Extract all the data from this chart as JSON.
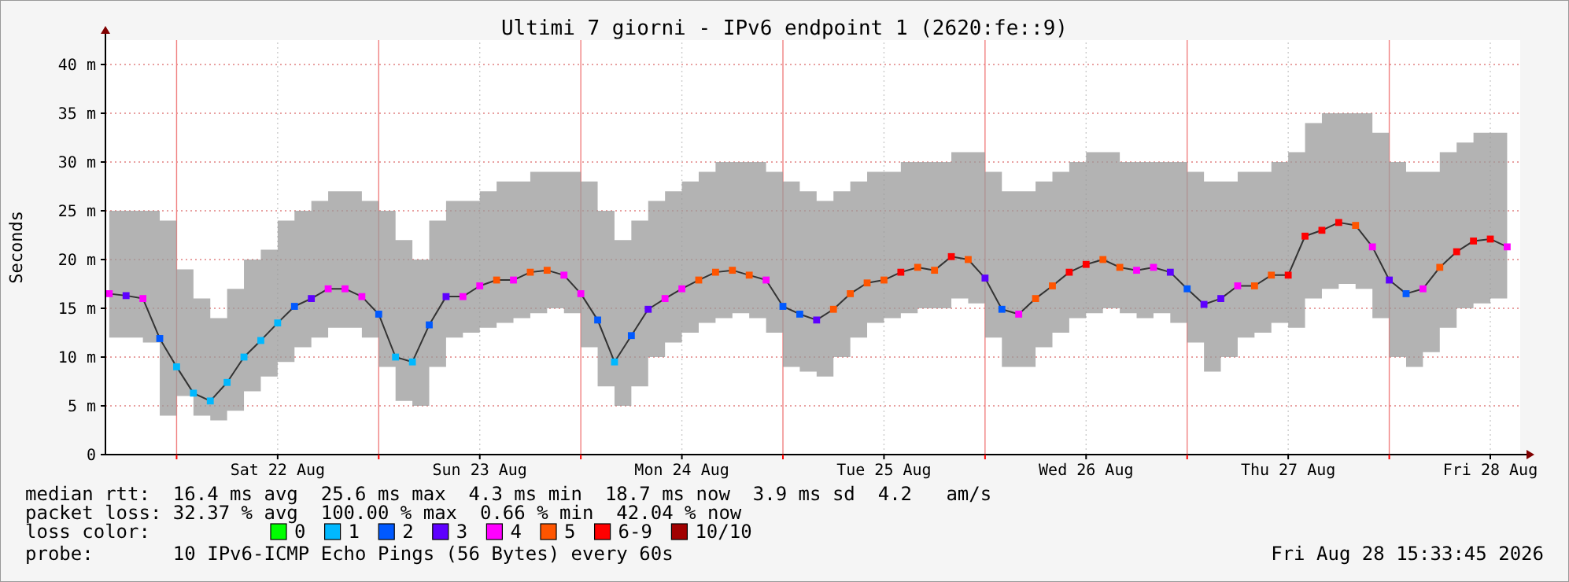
{
  "chart_data": {
    "type": "line",
    "title": "Ultimi 7 giorni - IPv6 endpoint 1 (2620:fe::9)",
    "ylabel": "Seconds",
    "legend_title": "loss color:",
    "legend": "bottom",
    "grid": true,
    "marker": "square",
    "annotations": [
      "median rtt:  16.4 ms avg  25.6 ms max  4.3 ms min  18.7 ms now  3.9 ms sd  4.2   am/s",
      "packet loss: 32.37 % avg  100.00 % max  0.66 % min  42.04 % now",
      "probe:       10 IPv6-ICMP Echo Pings (56 Bytes) every 60s",
      "Fri Aug 28 15:33:45 2026"
    ],
    "xlim": [
      "2026-08-21T15:33",
      "2026-08-28T15:33"
    ],
    "xticks": [
      {
        "value": "2026-08-22T00:00",
        "label": null
      },
      {
        "value": "2026-08-22T12:00",
        "label": "Sat 22 Aug"
      },
      {
        "value": "2026-08-23T00:00",
        "label": null
      },
      {
        "value": "2026-08-23T12:00",
        "label": "Sun 23 Aug"
      },
      {
        "value": "2026-08-24T00:00",
        "label": null
      },
      {
        "value": "2026-08-24T12:00",
        "label": "Mon 24 Aug"
      },
      {
        "value": "2026-08-25T00:00",
        "label": null
      },
      {
        "value": "2026-08-25T12:00",
        "label": "Tue 25 Aug"
      },
      {
        "value": "2026-08-26T00:00",
        "label": null
      },
      {
        "value": "2026-08-26T12:00",
        "label": "Wed 26 Aug"
      },
      {
        "value": "2026-08-27T00:00",
        "label": null
      },
      {
        "value": "2026-08-27T12:00",
        "label": "Thu 27 Aug"
      },
      {
        "value": "2026-08-28T00:00",
        "label": null
      },
      {
        "value": "2026-08-28T12:00",
        "label": "Fri 28 Aug"
      }
    ],
    "ylim": [
      0,
      42.5
    ],
    "yticks": [
      0,
      {
        "value": 5,
        "label": "5 m"
      },
      {
        "value": 10,
        "label": "10 m"
      },
      {
        "value": 15,
        "label": "15 m"
      },
      {
        "value": 20,
        "label": "20 m"
      },
      {
        "value": 25,
        "label": "25 m"
      },
      {
        "value": 30,
        "label": "30 m"
      },
      {
        "value": 35,
        "label": "35 m"
      },
      {
        "value": 40,
        "label": "40 m"
      }
    ],
    "x": [
      "2026-08-21T16:00",
      "2026-08-21T18:00",
      "2026-08-21T20:00",
      "2026-08-21T22:00",
      "2026-08-22T00:00",
      "2026-08-22T02:00",
      "2026-08-22T04:00",
      "2026-08-22T06:00",
      "2026-08-22T08:00",
      "2026-08-22T10:00",
      "2026-08-22T12:00",
      "2026-08-22T14:00",
      "2026-08-22T16:00",
      "2026-08-22T18:00",
      "2026-08-22T20:00",
      "2026-08-22T22:00",
      "2026-08-23T00:00",
      "2026-08-23T02:00",
      "2026-08-23T04:00",
      "2026-08-23T06:00",
      "2026-08-23T08:00",
      "2026-08-23T10:00",
      "2026-08-23T12:00",
      "2026-08-23T14:00",
      "2026-08-23T16:00",
      "2026-08-23T18:00",
      "2026-08-23T20:00",
      "2026-08-23T22:00",
      "2026-08-24T00:00",
      "2026-08-24T02:00",
      "2026-08-24T04:00",
      "2026-08-24T06:00",
      "2026-08-24T08:00",
      "2026-08-24T10:00",
      "2026-08-24T12:00",
      "2026-08-24T14:00",
      "2026-08-24T16:00",
      "2026-08-24T18:00",
      "2026-08-24T20:00",
      "2026-08-24T22:00",
      "2026-08-25T00:00",
      "2026-08-25T02:00",
      "2026-08-25T04:00",
      "2026-08-25T06:00",
      "2026-08-25T08:00",
      "2026-08-25T10:00",
      "2026-08-25T12:00",
      "2026-08-25T14:00",
      "2026-08-25T16:00",
      "2026-08-25T18:00",
      "2026-08-25T20:00",
      "2026-08-25T22:00",
      "2026-08-26T00:00",
      "2026-08-26T02:00",
      "2026-08-26T04:00",
      "2026-08-26T06:00",
      "2026-08-26T08:00",
      "2026-08-26T10:00",
      "2026-08-26T12:00",
      "2026-08-26T14:00",
      "2026-08-26T16:00",
      "2026-08-26T18:00",
      "2026-08-26T20:00",
      "2026-08-26T22:00",
      "2026-08-27T00:00",
      "2026-08-27T02:00",
      "2026-08-27T04:00",
      "2026-08-27T06:00",
      "2026-08-27T08:00",
      "2026-08-27T10:00",
      "2026-08-27T12:00",
      "2026-08-27T14:00",
      "2026-08-27T16:00",
      "2026-08-27T18:00",
      "2026-08-27T20:00",
      "2026-08-27T22:00",
      "2026-08-28T00:00",
      "2026-08-28T02:00",
      "2026-08-28T04:00",
      "2026-08-28T06:00",
      "2026-08-28T08:00",
      "2026-08-28T10:00",
      "2026-08-28T12:00",
      "2026-08-28T14:00"
    ],
    "series": [
      {
        "marker": "none",
        "color": "#333333",
        "values": [
          16.5,
          16.3,
          16.0,
          11.9,
          9.0,
          6.3,
          5.5,
          7.4,
          10.0,
          11.7,
          13.5,
          15.2,
          16.0,
          17.0,
          17.0,
          16.2,
          14.4,
          10.0,
          9.5,
          13.3,
          16.2,
          16.2,
          17.3,
          17.9,
          17.9,
          18.7,
          18.9,
          18.4,
          16.5,
          13.8,
          9.5,
          12.2,
          14.9,
          16.0,
          17.0,
          17.9,
          18.7,
          18.9,
          18.4,
          17.9,
          15.2,
          14.4,
          13.8,
          14.9,
          16.5,
          17.6,
          17.9,
          18.7,
          19.2,
          18.9,
          20.3,
          20.0,
          18.1,
          14.9,
          14.4,
          16.0,
          17.3,
          18.7,
          19.5,
          20.0,
          19.2,
          18.9,
          19.2,
          18.7,
          17.0,
          15.4,
          16.0,
          17.3,
          17.3,
          18.4,
          18.4,
          22.4,
          23.0,
          23.8,
          23.5,
          21.3,
          17.9,
          16.5,
          17.0,
          19.2,
          20.8,
          21.9,
          22.1,
          21.3
        ],
        "lower": [
          12.0,
          12.0,
          11.5,
          4.0,
          6.0,
          4.0,
          3.5,
          4.5,
          6.5,
          8.0,
          9.5,
          11.0,
          12.0,
          13.0,
          13.0,
          12.0,
          9.0,
          5.5,
          5.0,
          9.0,
          12.0,
          12.5,
          13.0,
          13.5,
          14.0,
          14.5,
          15.0,
          14.5,
          11.0,
          7.0,
          5.0,
          7.0,
          10.0,
          11.5,
          12.5,
          13.5,
          14.0,
          14.5,
          14.0,
          12.5,
          9.0,
          8.5,
          8.0,
          10.0,
          12.0,
          13.5,
          14.0,
          14.5,
          15.0,
          15.0,
          16.0,
          15.5,
          12.0,
          9.0,
          9.0,
          11.0,
          12.5,
          14.0,
          14.5,
          15.0,
          14.5,
          14.0,
          14.5,
          13.5,
          11.5,
          8.5,
          10.0,
          12.0,
          12.5,
          13.5,
          13.0,
          16.0,
          17.0,
          17.5,
          17.0,
          14.0,
          10.0,
          9.0,
          10.5,
          13.0,
          15.0,
          15.5,
          16.0,
          14.0
        ],
        "upper": [
          25,
          25,
          25,
          24,
          19,
          16,
          14,
          17,
          20,
          21,
          24,
          25,
          26,
          27,
          27,
          26,
          25,
          22,
          20,
          24,
          26,
          26,
          27,
          28,
          28,
          29,
          29,
          29,
          28,
          25,
          22,
          24,
          26,
          27,
          28,
          29,
          30,
          30,
          30,
          29,
          28,
          27,
          26,
          27,
          28,
          29,
          29,
          30,
          30,
          30,
          31,
          31,
          29,
          27,
          27,
          28,
          29,
          30,
          31,
          31,
          30,
          30,
          30,
          30,
          29,
          28,
          28,
          29,
          29,
          30,
          31,
          34,
          35,
          35,
          35,
          33,
          30,
          29,
          29,
          31,
          32,
          33,
          33,
          33
        ]
      },
      {
        "type": "scatter",
        "name": "0",
        "color": "#00ff00",
        "values": [
          null,
          null,
          null,
          null,
          null,
          null,
          null,
          null,
          null,
          null,
          null,
          null,
          null,
          null,
          null,
          null,
          null,
          null,
          null,
          null,
          null,
          null,
          null,
          null,
          null,
          null,
          null,
          null,
          null,
          null,
          null,
          null,
          null,
          null,
          null,
          null,
          null,
          null,
          null,
          null,
          null,
          null,
          null,
          null,
          null,
          null,
          null,
          null,
          null,
          null,
          null,
          null,
          null,
          null,
          null,
          null,
          null,
          null,
          null,
          null,
          null,
          null,
          null,
          null,
          null,
          null,
          null,
          null,
          null,
          null,
          null,
          null,
          null,
          null,
          null,
          null,
          null,
          null,
          null,
          null,
          null,
          null,
          null,
          null
        ]
      },
      {
        "type": "scatter",
        "name": "1",
        "color": "#00b8ff",
        "x": [
          "2026-08-22T00:00",
          "2026-08-22T02:00",
          "2026-08-22T04:00",
          "2026-08-22T06:00",
          "2026-08-22T08:00",
          "2026-08-22T10:00",
          "2026-08-22T12:00",
          "2026-08-23T02:00",
          "2026-08-23T04:00",
          "2026-08-24T04:00"
        ],
        "values": [
          9.0,
          6.3,
          5.5,
          7.4,
          10.0,
          11.7,
          13.5,
          10.0,
          9.5,
          9.5
        ]
      },
      {
        "type": "scatter",
        "name": "2",
        "color": "#0059ff",
        "x": [
          "2026-08-21T22:00",
          "2026-08-22T14:00",
          "2026-08-23T00:00",
          "2026-08-23T06:00",
          "2026-08-24T02:00",
          "2026-08-24T06:00",
          "2026-08-25T00:00",
          "2026-08-25T02:00",
          "2026-08-26T02:00",
          "2026-08-27T00:00",
          "2026-08-28T02:00"
        ],
        "values": [
          11.9,
          15.2,
          14.4,
          13.3,
          13.8,
          12.2,
          15.2,
          14.4,
          14.9,
          17.0,
          16.5
        ]
      },
      {
        "type": "scatter",
        "name": "3",
        "color": "#5e00ff",
        "x": [
          "2026-08-21T18:00",
          "2026-08-22T16:00",
          "2026-08-23T08:00",
          "2026-08-24T08:00",
          "2026-08-25T04:00",
          "2026-08-26T00:00",
          "2026-08-26T22:00",
          "2026-08-27T02:00",
          "2026-08-27T04:00",
          "2026-08-28T00:00"
        ],
        "values": [
          16.3,
          16.0,
          16.2,
          14.9,
          13.8,
          18.1,
          18.7,
          15.4,
          16.0,
          17.9
        ]
      },
      {
        "type": "scatter",
        "name": "4",
        "color": "#ff00ff",
        "x": [
          "2026-08-21T16:00",
          "2026-08-21T20:00",
          "2026-08-22T18:00",
          "2026-08-22T20:00",
          "2026-08-22T22:00",
          "2026-08-23T10:00",
          "2026-08-23T12:00",
          "2026-08-23T16:00",
          "2026-08-23T22:00",
          "2026-08-24T00:00",
          "2026-08-24T10:00",
          "2026-08-24T12:00",
          "2026-08-24T22:00",
          "2026-08-26T04:00",
          "2026-08-26T18:00",
          "2026-08-26T20:00",
          "2026-08-27T06:00",
          "2026-08-27T22:00",
          "2026-08-28T04:00",
          "2026-08-28T14:00"
        ],
        "values": [
          16.5,
          16.0,
          17.0,
          17.0,
          16.2,
          16.2,
          17.3,
          17.9,
          18.4,
          16.5,
          16.0,
          17.0,
          17.9,
          14.4,
          18.9,
          19.2,
          17.3,
          21.3,
          17.0,
          21.3
        ]
      },
      {
        "type": "scatter",
        "name": "5",
        "color": "#ff5500",
        "x": [
          "2026-08-23T14:00",
          "2026-08-23T18:00",
          "2026-08-23T20:00",
          "2026-08-24T14:00",
          "2026-08-24T16:00",
          "2026-08-24T18:00",
          "2026-08-24T20:00",
          "2026-08-25T06:00",
          "2026-08-25T08:00",
          "2026-08-25T10:00",
          "2026-08-25T12:00",
          "2026-08-25T16:00",
          "2026-08-25T18:00",
          "2026-08-25T22:00",
          "2026-08-26T06:00",
          "2026-08-26T08:00",
          "2026-08-26T14:00",
          "2026-08-26T16:00",
          "2026-08-27T08:00",
          "2026-08-27T10:00",
          "2026-08-27T20:00",
          "2026-08-28T06:00"
        ],
        "values": [
          17.9,
          18.7,
          18.9,
          17.9,
          18.7,
          18.9,
          18.4,
          14.9,
          16.5,
          17.6,
          17.9,
          19.2,
          18.9,
          20.0,
          16.0,
          17.3,
          20.0,
          19.2,
          17.3,
          18.4,
          23.5,
          19.2
        ]
      },
      {
        "type": "scatter",
        "name": "6-9",
        "color": "#ff0000",
        "x": [
          "2026-08-25T14:00",
          "2026-08-25T20:00",
          "2026-08-26T10:00",
          "2026-08-26T12:00",
          "2026-08-27T12:00",
          "2026-08-27T14:00",
          "2026-08-27T16:00",
          "2026-08-27T18:00",
          "2026-08-28T08:00",
          "2026-08-28T10:00",
          "2026-08-28T12:00"
        ],
        "values": [
          18.7,
          20.3,
          18.7,
          19.5,
          18.4,
          22.4,
          23.0,
          23.8,
          20.8,
          21.9,
          22.1
        ]
      },
      {
        "type": "scatter",
        "name": "10/10",
        "color": "#a10000",
        "values": [
          null,
          null,
          null,
          null,
          null,
          null,
          null,
          null,
          null,
          null,
          null,
          null,
          null,
          null,
          null,
          null,
          null,
          null,
          null,
          null,
          null,
          null,
          null,
          null,
          null,
          null,
          null,
          null,
          null,
          null,
          null,
          null,
          null,
          null,
          null,
          null,
          null,
          null,
          null,
          null,
          null,
          null,
          null,
          null,
          null,
          null,
          null,
          null,
          null,
          null,
          null,
          null,
          null,
          null,
          null,
          null,
          null,
          null,
          null,
          null,
          null,
          null,
          null,
          null,
          null,
          null,
          null,
          null,
          null,
          null,
          null,
          null,
          null,
          null,
          null,
          null,
          null,
          null,
          null,
          null,
          null,
          null,
          null,
          null
        ]
      }
    ]
  }
}
